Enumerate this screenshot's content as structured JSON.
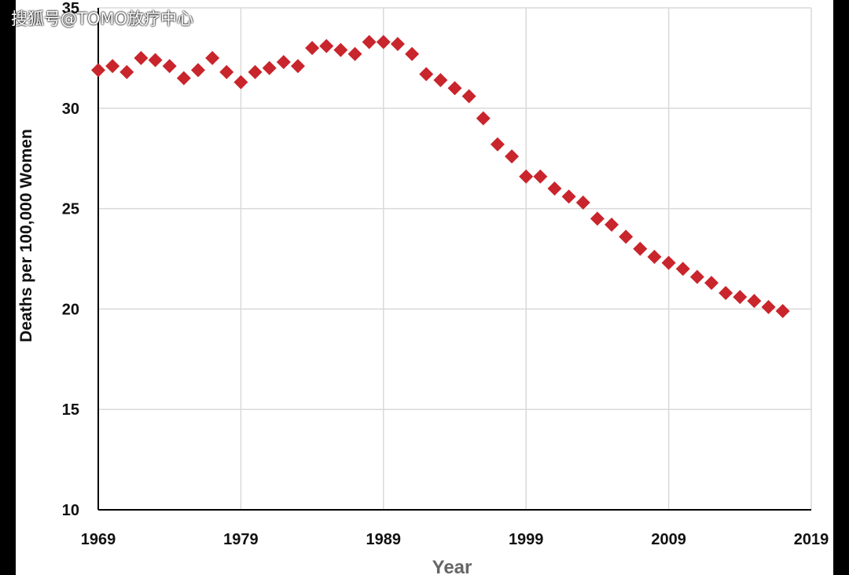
{
  "watermark": "搜狐号@TOMO放疗中心",
  "colors": {
    "marker": "#C9252C",
    "grid": "#D9D9D9",
    "axis": "#000000"
  },
  "chart_data": {
    "type": "scatter",
    "title": "",
    "xlabel": "Year",
    "ylabel": "Deaths per 100,000 Women",
    "xlim": [
      1969,
      2019
    ],
    "ylim": [
      10,
      35
    ],
    "xticks": [
      1969,
      1979,
      1989,
      1999,
      2009,
      2019
    ],
    "yticks": [
      10,
      15,
      20,
      25,
      30,
      35
    ],
    "grid": true,
    "marker": "diamond",
    "x": [
      1969,
      1970,
      1971,
      1972,
      1973,
      1974,
      1975,
      1976,
      1977,
      1978,
      1979,
      1980,
      1981,
      1982,
      1983,
      1984,
      1985,
      1986,
      1987,
      1988,
      1989,
      1990,
      1991,
      1992,
      1993,
      1994,
      1995,
      1996,
      1997,
      1998,
      1999,
      2000,
      2001,
      2002,
      2003,
      2004,
      2005,
      2006,
      2007,
      2008,
      2009,
      2010,
      2011,
      2012,
      2013,
      2014,
      2015,
      2016,
      2017
    ],
    "y": [
      31.9,
      32.1,
      31.8,
      32.5,
      32.4,
      32.1,
      31.5,
      31.9,
      32.5,
      31.8,
      31.3,
      31.8,
      32.0,
      32.3,
      32.1,
      33.0,
      33.1,
      32.9,
      32.7,
      33.3,
      33.3,
      33.2,
      32.7,
      31.7,
      31.4,
      31.0,
      30.6,
      29.5,
      28.2,
      27.6,
      26.6,
      26.6,
      26.0,
      25.6,
      25.3,
      24.5,
      24.2,
      23.6,
      23.0,
      22.6,
      22.3,
      22.0,
      21.6,
      21.3,
      20.8,
      20.6,
      20.4,
      20.1,
      19.9
    ]
  }
}
